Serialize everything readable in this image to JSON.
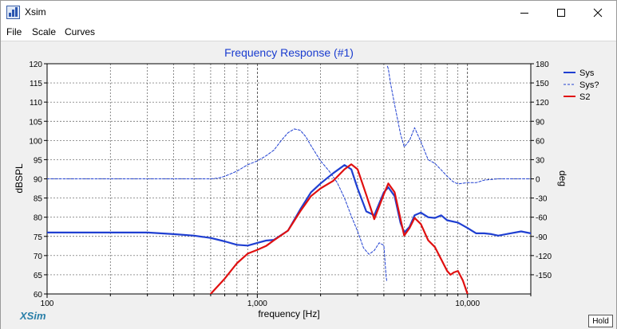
{
  "window": {
    "title": "Xsim",
    "icon": "xsim-app-icon",
    "controls": [
      "minimize-icon",
      "maximize-icon",
      "close-icon"
    ]
  },
  "menu": {
    "items": [
      "File",
      "Scale",
      "Curves"
    ]
  },
  "branding": {
    "logo_text": "XSim"
  },
  "hold_button": {
    "label": "Hold"
  },
  "chart_data": {
    "type": "line",
    "title": "Frequency Response (#1)",
    "xlabel": "frequency [Hz]",
    "ylabel": "dBSPL",
    "y2label": "deg",
    "xscale": "log",
    "xlim": [
      100,
      20000
    ],
    "ylim": [
      60,
      120
    ],
    "y2lim": [
      -180,
      180
    ],
    "grid": true,
    "legend_position": "top-right",
    "x_tick_labels": [
      {
        "value": 100,
        "label": "100"
      },
      {
        "value": 1000,
        "label": "1,000"
      },
      {
        "value": 10000,
        "label": "10,000"
      }
    ],
    "y_ticks": [
      60,
      65,
      70,
      75,
      80,
      85,
      90,
      95,
      100,
      105,
      110,
      115,
      120
    ],
    "y2_ticks": [
      -150,
      -120,
      -90,
      -60,
      -30,
      0,
      30,
      60,
      90,
      120,
      150,
      180
    ],
    "colors": {
      "title": "#1a3ccf",
      "sys": "#1f3fd1",
      "phase": "#1f3fd1",
      "s2": "#e01010"
    },
    "series": [
      {
        "name": "Sys",
        "axis": "left",
        "style": "solid",
        "color": "#1f3fd1",
        "width": 2.2,
        "x": [
          100,
          200,
          300,
          400,
          500,
          600,
          700,
          800,
          900,
          1000,
          1100,
          1200,
          1400,
          1600,
          1800,
          2000,
          2300,
          2600,
          2800,
          3000,
          3300,
          3600,
          4000,
          4200,
          4500,
          4800,
          5000,
          5300,
          5600,
          6000,
          6500,
          7000,
          7500,
          8000,
          9000,
          10000,
          11000,
          12000,
          13000,
          14000,
          16000,
          18000,
          20000
        ],
        "y": [
          76,
          76,
          76,
          75.6,
          75.2,
          74.6,
          73.7,
          72.8,
          72.6,
          73.3,
          73.9,
          74.1,
          76.5,
          82,
          86.5,
          88.8,
          91.5,
          93.6,
          92.5,
          87.5,
          81.5,
          80.5,
          86.5,
          87.8,
          85.5,
          78.5,
          76,
          77.5,
          80.5,
          81.2,
          80,
          79.8,
          80.5,
          79.2,
          78.6,
          77.2,
          75.8,
          75.8,
          75.6,
          75.2,
          75.8,
          76.3,
          75.8
        ]
      },
      {
        "name": "Sys?",
        "axis": "right",
        "style": "dashed",
        "color": "#1f3fd1",
        "width": 1,
        "x": [
          100,
          200,
          300,
          400,
          500,
          600,
          650,
          700,
          800,
          900,
          1000,
          1100,
          1200,
          1300,
          1400,
          1500,
          1600,
          1700,
          1800,
          2000,
          2200,
          2400,
          2600,
          2800,
          3000,
          3200,
          3400,
          3600,
          3800,
          4000,
          4100,
          4130,
          4160,
          4200,
          4300,
          4500,
          4800,
          5000,
          5300,
          5600,
          6000,
          6500,
          7000,
          7500,
          8000,
          8500,
          9000,
          10000,
          11000,
          12000,
          14000,
          16000,
          18000,
          20000
        ],
        "y": [
          0,
          0,
          0,
          0,
          0,
          0,
          1,
          4,
          12,
          22,
          28,
          36,
          45,
          60,
          72,
          78,
          76,
          66,
          52,
          28,
          12,
          -6,
          -30,
          -58,
          -82,
          -108,
          -118,
          -112,
          -100,
          -104,
          -152,
          -160,
          176,
          172,
          150,
          116,
          70,
          50,
          60,
          80,
          58,
          30,
          24,
          14,
          4,
          -4,
          -8,
          -6,
          -6,
          -2,
          0,
          0,
          0,
          0
        ]
      },
      {
        "name": "S2",
        "axis": "left",
        "style": "solid",
        "color": "#e01010",
        "width": 2.2,
        "x": [
          600,
          700,
          800,
          900,
          1000,
          1100,
          1200,
          1400,
          1600,
          1800,
          2000,
          2300,
          2600,
          2800,
          3000,
          3300,
          3600,
          4000,
          4200,
          4500,
          4800,
          5000,
          5300,
          5600,
          6000,
          6500,
          7000,
          7500,
          8000,
          8300,
          8600,
          9000,
          9500,
          10000
        ],
        "y": [
          60,
          64,
          68,
          70.5,
          71.5,
          72.5,
          74,
          76.5,
          81.5,
          85.5,
          87.5,
          89.5,
          92.5,
          93.8,
          92.5,
          85.8,
          79.5,
          86,
          88.8,
          86.5,
          79.5,
          75.2,
          77.2,
          79.8,
          78.2,
          74,
          72.2,
          69,
          66,
          65,
          65.6,
          66,
          63.5,
          60
        ]
      }
    ]
  }
}
